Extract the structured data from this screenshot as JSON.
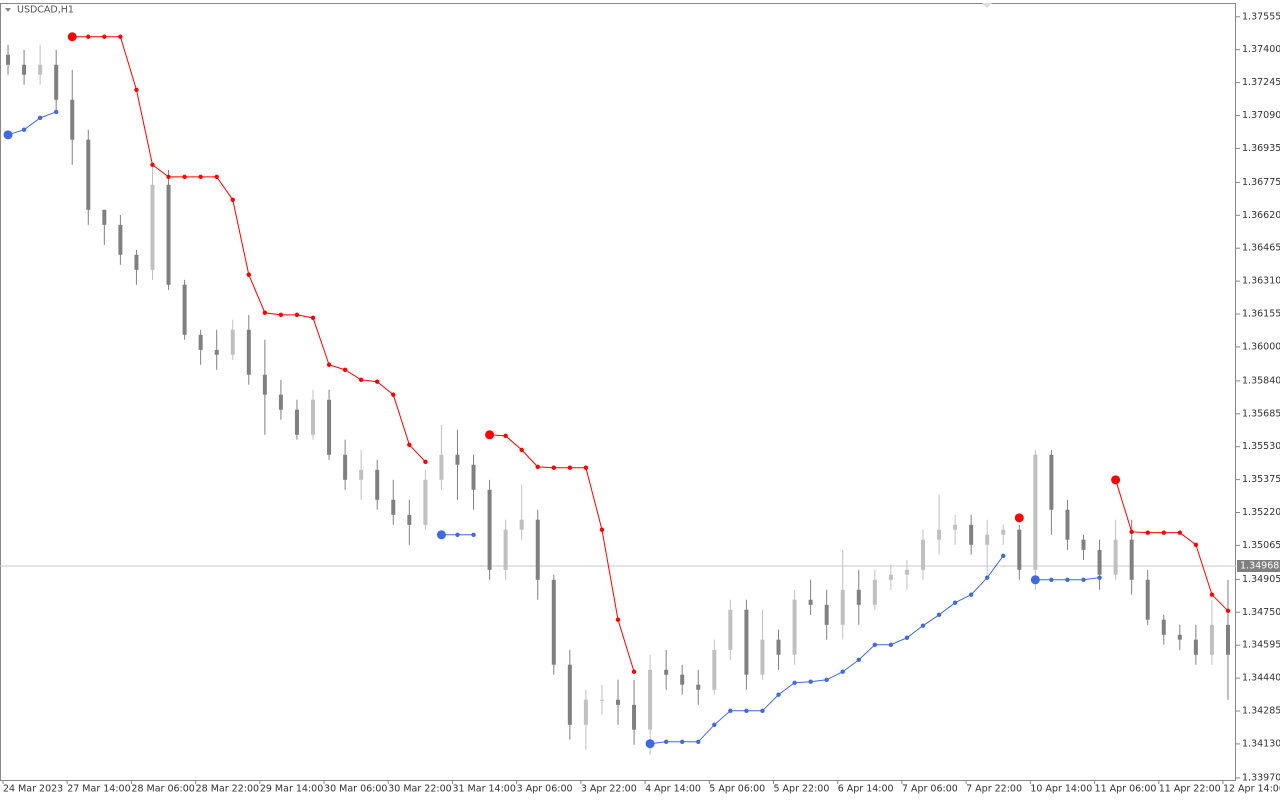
{
  "chart_data": {
    "type": "candlestick",
    "title": "USDCAD,H1",
    "categories": [
      "24 Mar 2023",
      null,
      null,
      null,
      "27 Mar 14:00",
      null,
      null,
      null,
      "28 Mar 06:00",
      null,
      null,
      null,
      "28 Mar 22:00",
      null,
      null,
      null,
      "29 Mar 14:00",
      null,
      null,
      null,
      "30 Mar 06:00",
      null,
      null,
      null,
      "30 Mar 22:00",
      null,
      null,
      null,
      "31 Mar 14:00",
      null,
      null,
      null,
      "3 Apr 06:00",
      null,
      null,
      null,
      "3 Apr 22:00",
      null,
      null,
      null,
      "4 Apr 14:00",
      null,
      null,
      null,
      "5 Apr 06:00",
      null,
      null,
      null,
      "5 Apr 22:00",
      null,
      null,
      null,
      "6 Apr 14:00",
      null,
      null,
      null,
      "7 Apr 06:00",
      null,
      null,
      null,
      "7 Apr 22:00",
      null,
      null,
      null,
      "10 Apr 14:00",
      null,
      null,
      null,
      "11 Apr 06:00",
      null,
      null,
      null,
      "11 Apr 22:00",
      null,
      null,
      null,
      "12 Apr 14:00"
    ],
    "open": [
      1.37376,
      1.37329,
      1.37282,
      1.37329,
      1.37164,
      1.36976,
      1.36646,
      1.36575,
      1.36434,
      1.36363,
      1.36764,
      1.36293,
      1.36057,
      1.35986,
      1.35963,
      1.36081,
      1.35869,
      1.35775,
      1.35704,
      1.35586,
      1.35751,
      1.35492,
      1.35374,
      1.35421,
      1.3528,
      1.35209,
      1.35162,
      1.35374,
      1.35492,
      1.35445,
      1.35327,
      1.3495,
      1.35139,
      1.35186,
      1.34903,
      1.34503,
      1.3422,
      1.34338,
      1.34338,
      1.34314,
      1.34197,
      1.34479,
      1.34456,
      1.34409,
      1.34385,
      1.34573,
      1.34762,
      1.34456,
      1.34621,
      1.3455,
      1.34809,
      1.34785,
      1.34691,
      1.34856,
      1.34785,
      1.34903,
      1.34927,
      1.3495,
      1.35092,
      1.35139,
      1.35162,
      1.35068,
      1.35115,
      1.35139,
      1.3495,
      1.35492,
      1.35233,
      1.35092,
      1.35044,
      1.34927,
      1.35092,
      1.34903,
      1.34715,
      1.34644,
      1.34621,
      1.3455,
      1.34691
    ],
    "high": [
      1.37423,
      1.37399,
      1.37423,
      1.37399,
      1.37305,
      1.37023,
      1.36646,
      1.36622,
      1.36457,
      1.36858,
      1.36834,
      1.36316,
      1.36081,
      1.36081,
      1.36128,
      1.36151,
      1.36034,
      1.35845,
      1.35751,
      1.35798,
      1.35798,
      1.35563,
      1.35515,
      1.35468,
      1.35374,
      1.3528,
      1.35421,
      1.35633,
      1.3561,
      1.35492,
      1.35374,
      1.35186,
      1.35351,
      1.35233,
      1.34927,
      1.34573,
      1.34385,
      1.34409,
      1.34432,
      1.34432,
      1.3455,
      1.34573,
      1.34503,
      1.34479,
      1.34621,
      1.34809,
      1.34809,
      1.34762,
      1.34668,
      1.34856,
      1.34903,
      1.34856,
      1.35044,
      1.3495,
      1.3495,
      1.34974,
      1.34997,
      1.35139,
      1.35304,
      1.35209,
      1.35209,
      1.35186,
      1.35162,
      1.35162,
      1.35515,
      1.35515,
      1.3528,
      1.35115,
      1.35092,
      1.35186,
      1.35186,
      1.3495,
      1.34738,
      1.34691,
      1.34691,
      1.34809,
      1.34903
    ],
    "low": [
      1.37282,
      1.37235,
      1.37235,
      1.37117,
      1.36858,
      1.36575,
      1.36481,
      1.36387,
      1.36293,
      1.36316,
      1.36269,
      1.36034,
      1.35916,
      1.35892,
      1.35939,
      1.35822,
      1.35586,
      1.35657,
      1.35563,
      1.35563,
      1.35468,
      1.35327,
      1.3528,
      1.35233,
      1.35162,
      1.35068,
      1.35139,
      1.35327,
      1.3528,
      1.35233,
      1.34903,
      1.34903,
      1.35092,
      1.34809,
      1.34456,
      1.3415,
      1.34102,
      1.34267,
      1.3422,
      1.34126,
      1.34079,
      1.34385,
      1.34362,
      1.34314,
      1.34362,
      1.34526,
      1.34385,
      1.34432,
      1.34479,
      1.34503,
      1.34738,
      1.34621,
      1.34621,
      1.34691,
      1.34762,
      1.34856,
      1.34856,
      1.34903,
      1.35021,
      1.35068,
      1.35021,
      1.34927,
      1.35068,
      1.34903,
      1.34856,
      1.35115,
      1.35044,
      1.34997,
      1.34856,
      1.34903,
      1.34833,
      1.34691,
      1.34597,
      1.34573,
      1.34503,
      1.34503,
      1.34338
    ],
    "close": [
      1.37329,
      1.37282,
      1.37329,
      1.37164,
      1.36976,
      1.36646,
      1.36575,
      1.36434,
      1.36363,
      1.36764,
      1.36293,
      1.36057,
      1.35986,
      1.35963,
      1.36081,
      1.35869,
      1.35775,
      1.35704,
      1.35586,
      1.35751,
      1.35492,
      1.35374,
      1.35421,
      1.3528,
      1.35209,
      1.35162,
      1.35374,
      1.35492,
      1.35445,
      1.35327,
      1.3495,
      1.35139,
      1.35186,
      1.34903,
      1.34503,
      1.3422,
      1.34338,
      1.34338,
      1.34314,
      1.34197,
      1.34479,
      1.34456,
      1.34409,
      1.34385,
      1.34573,
      1.34762,
      1.34456,
      1.34621,
      1.3455,
      1.34809,
      1.34785,
      1.34691,
      1.34856,
      1.34785,
      1.34903,
      1.34927,
      1.3495,
      1.35092,
      1.35139,
      1.35162,
      1.35068,
      1.35115,
      1.35139,
      1.3495,
      1.35492,
      1.35233,
      1.35092,
      1.35044,
      1.34927,
      1.35092,
      1.34903,
      1.34715,
      1.34644,
      1.34621,
      1.3455,
      1.34691,
      1.3455
    ],
    "up_color": "#c0c0c0",
    "down_color": "#808080",
    "overlays": [
      {
        "color": "#ff0000",
        "values": [
          null,
          null,
          null,
          null,
          1.37461,
          1.37461,
          1.37461,
          1.37461,
          1.37211,
          1.36858,
          1.36801,
          1.36801,
          1.36801,
          1.36801,
          1.36693,
          1.3634,
          1.36161,
          1.36151,
          1.36151,
          1.36137,
          1.35916,
          1.35892,
          1.35845,
          1.35836,
          1.35775,
          1.35539,
          1.35459,
          null,
          null,
          null,
          1.35586,
          1.35581,
          1.35515,
          1.35435,
          1.35431,
          1.35431,
          1.35431,
          1.35139,
          1.34715,
          1.3447,
          null,
          null,
          null,
          null,
          null,
          null,
          null,
          null,
          null,
          null,
          null,
          null,
          null,
          null,
          null,
          null,
          null,
          null,
          null,
          null,
          null,
          null,
          null,
          1.35195,
          null,
          null,
          null,
          null,
          null,
          1.35374,
          1.35129,
          1.35125,
          1.35125,
          1.35125,
          1.35068,
          1.34833,
          1.34757
        ]
      },
      {
        "color": "#4169e1",
        "values": [
          1.36999,
          1.37023,
          1.37079,
          1.37107,
          null,
          null,
          null,
          null,
          null,
          null,
          null,
          null,
          null,
          null,
          null,
          null,
          null,
          null,
          null,
          null,
          null,
          null,
          null,
          null,
          null,
          null,
          null,
          1.35115,
          1.35115,
          1.35115,
          null,
          null,
          null,
          null,
          null,
          null,
          null,
          null,
          null,
          null,
          1.34131,
          1.3414,
          1.3414,
          1.3414,
          1.3422,
          1.34286,
          1.34286,
          1.34286,
          1.34362,
          1.34418,
          1.34423,
          1.34432,
          1.3447,
          1.34526,
          1.34597,
          1.34597,
          1.3463,
          1.34687,
          1.34738,
          1.34795,
          1.34833,
          1.34913,
          1.35016,
          null,
          1.34903,
          1.34903,
          1.34903,
          1.34903,
          1.34913,
          null,
          null,
          null,
          null,
          null,
          null,
          null,
          null
        ]
      }
    ],
    "last_price": 1.34968,
    "ylim": [
      1.3396,
      1.3762
    ],
    "yticks": [
      1.37555,
      {
        "value": 1.374,
        "label": "1.37400"
      },
      1.37245,
      {
        "value": 1.3709,
        "label": "1.37090"
      },
      1.36935,
      1.36775,
      {
        "value": 1.3662,
        "label": "1.36620"
      },
      1.36465,
      {
        "value": 1.3631,
        "label": "1.36310"
      },
      1.36155,
      {
        "value": 1.36,
        "label": "1.36000"
      },
      {
        "value": 1.3584,
        "label": "1.35840"
      },
      1.35685,
      {
        "value": 1.3553,
        "label": "1.35530"
      },
      1.35375,
      {
        "value": 1.3522,
        "label": "1.35220"
      },
      1.35065,
      1.34905,
      {
        "value": 1.3475,
        "label": "1.34750"
      },
      1.34595,
      {
        "value": 1.3444,
        "label": "1.34440"
      },
      1.34285,
      {
        "value": 1.3413,
        "label": "1.34130"
      },
      {
        "value": 1.3397,
        "label": "1.33970"
      }
    ],
    "grid": false
  }
}
